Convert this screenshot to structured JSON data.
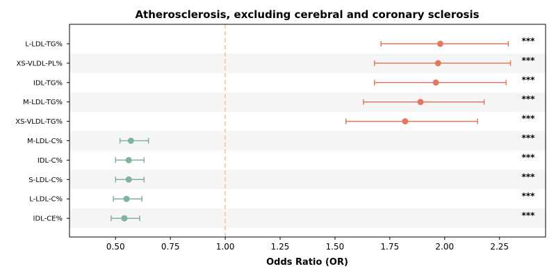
{
  "chart_data": {
    "type": "forest",
    "title": "Atherosclerosis, excluding cerebral and coronary sclerosis",
    "xlabel": "Odds Ratio (OR)",
    "xlim": [
      0.29,
      2.46
    ],
    "xticks": [
      "0.50",
      "0.75",
      "1.00",
      "1.25",
      "1.50",
      "1.75",
      "2.00",
      "2.25"
    ],
    "reference_line": 1.0,
    "significance_label": "***",
    "colors": {
      "positive": "#e07a5f",
      "negative": "#81b29a",
      "reference": "#f2c893",
      "band": "#f5f5f5"
    },
    "rows": [
      {
        "label": "L-LDL-TG%",
        "or": 1.98,
        "lo": 1.71,
        "hi": 2.29,
        "sig": "***"
      },
      {
        "label": "XS-VLDL-PL%",
        "or": 1.97,
        "lo": 1.68,
        "hi": 2.3,
        "sig": "***"
      },
      {
        "label": "IDL-TG%",
        "or": 1.96,
        "lo": 1.68,
        "hi": 2.28,
        "sig": "***"
      },
      {
        "label": "M-LDL-TG%",
        "or": 1.89,
        "lo": 1.63,
        "hi": 2.18,
        "sig": "***"
      },
      {
        "label": "XS-VLDL-TG%",
        "or": 1.82,
        "lo": 1.55,
        "hi": 2.15,
        "sig": "***"
      },
      {
        "label": "M-LDL-C%",
        "or": 0.57,
        "lo": 0.52,
        "hi": 0.65,
        "sig": "***"
      },
      {
        "label": "IDL-C%",
        "or": 0.56,
        "lo": 0.5,
        "hi": 0.63,
        "sig": "***"
      },
      {
        "label": "S-LDL-C%",
        "or": 0.56,
        "lo": 0.5,
        "hi": 0.63,
        "sig": "***"
      },
      {
        "label": "L-LDL-C%",
        "or": 0.55,
        "lo": 0.49,
        "hi": 0.62,
        "sig": "***"
      },
      {
        "label": "IDL-CE%",
        "or": 0.54,
        "lo": 0.48,
        "hi": 0.61,
        "sig": "***"
      }
    ]
  }
}
